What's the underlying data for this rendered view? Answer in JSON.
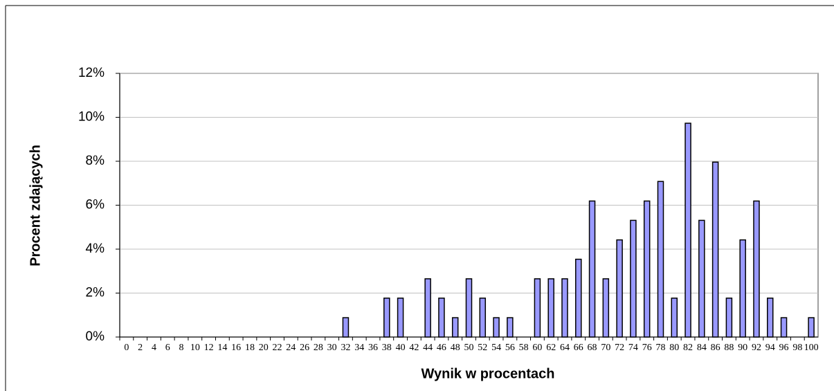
{
  "chart_data": {
    "type": "bar",
    "x_label": "Wynik w procentach",
    "y_label": "Procent zdających",
    "categories": [
      "0",
      "2",
      "4",
      "6",
      "8",
      "10",
      "12",
      "14",
      "16",
      "18",
      "20",
      "22",
      "24",
      "26",
      "28",
      "30",
      "32",
      "34",
      "36",
      "38",
      "40",
      "42",
      "44",
      "46",
      "48",
      "50",
      "52",
      "54",
      "56",
      "58",
      "60",
      "62",
      "64",
      "66",
      "68",
      "70",
      "72",
      "74",
      "76",
      "78",
      "80",
      "82",
      "84",
      "86",
      "88",
      "90",
      "92",
      "94",
      "96",
      "98",
      "100"
    ],
    "values": [
      0,
      0,
      0,
      0,
      0,
      0,
      0,
      0,
      0,
      0,
      0,
      0,
      0,
      0,
      0,
      0,
      0.88,
      0,
      0,
      1.77,
      1.77,
      0,
      2.65,
      1.77,
      0.88,
      2.65,
      1.77,
      0.88,
      0.88,
      0,
      2.65,
      2.65,
      2.65,
      3.54,
      6.19,
      2.65,
      4.42,
      5.31,
      6.19,
      7.08,
      1.77,
      9.73,
      5.31,
      7.96,
      1.77,
      4.42,
      6.19,
      1.77,
      0.88,
      0,
      0.88
    ],
    "color": "#9999ff",
    "ylim": [
      0,
      12
    ],
    "yticks": [
      {
        "value": 0,
        "label": "0%"
      },
      {
        "value": 2,
        "label": "2%"
      },
      {
        "value": 4,
        "label": "4%"
      },
      {
        "value": 6,
        "label": "6%"
      },
      {
        "value": 8,
        "label": "8%"
      },
      {
        "value": 10,
        "label": "10%"
      },
      {
        "value": 12,
        "label": "12%"
      }
    ],
    "grid": true
  }
}
